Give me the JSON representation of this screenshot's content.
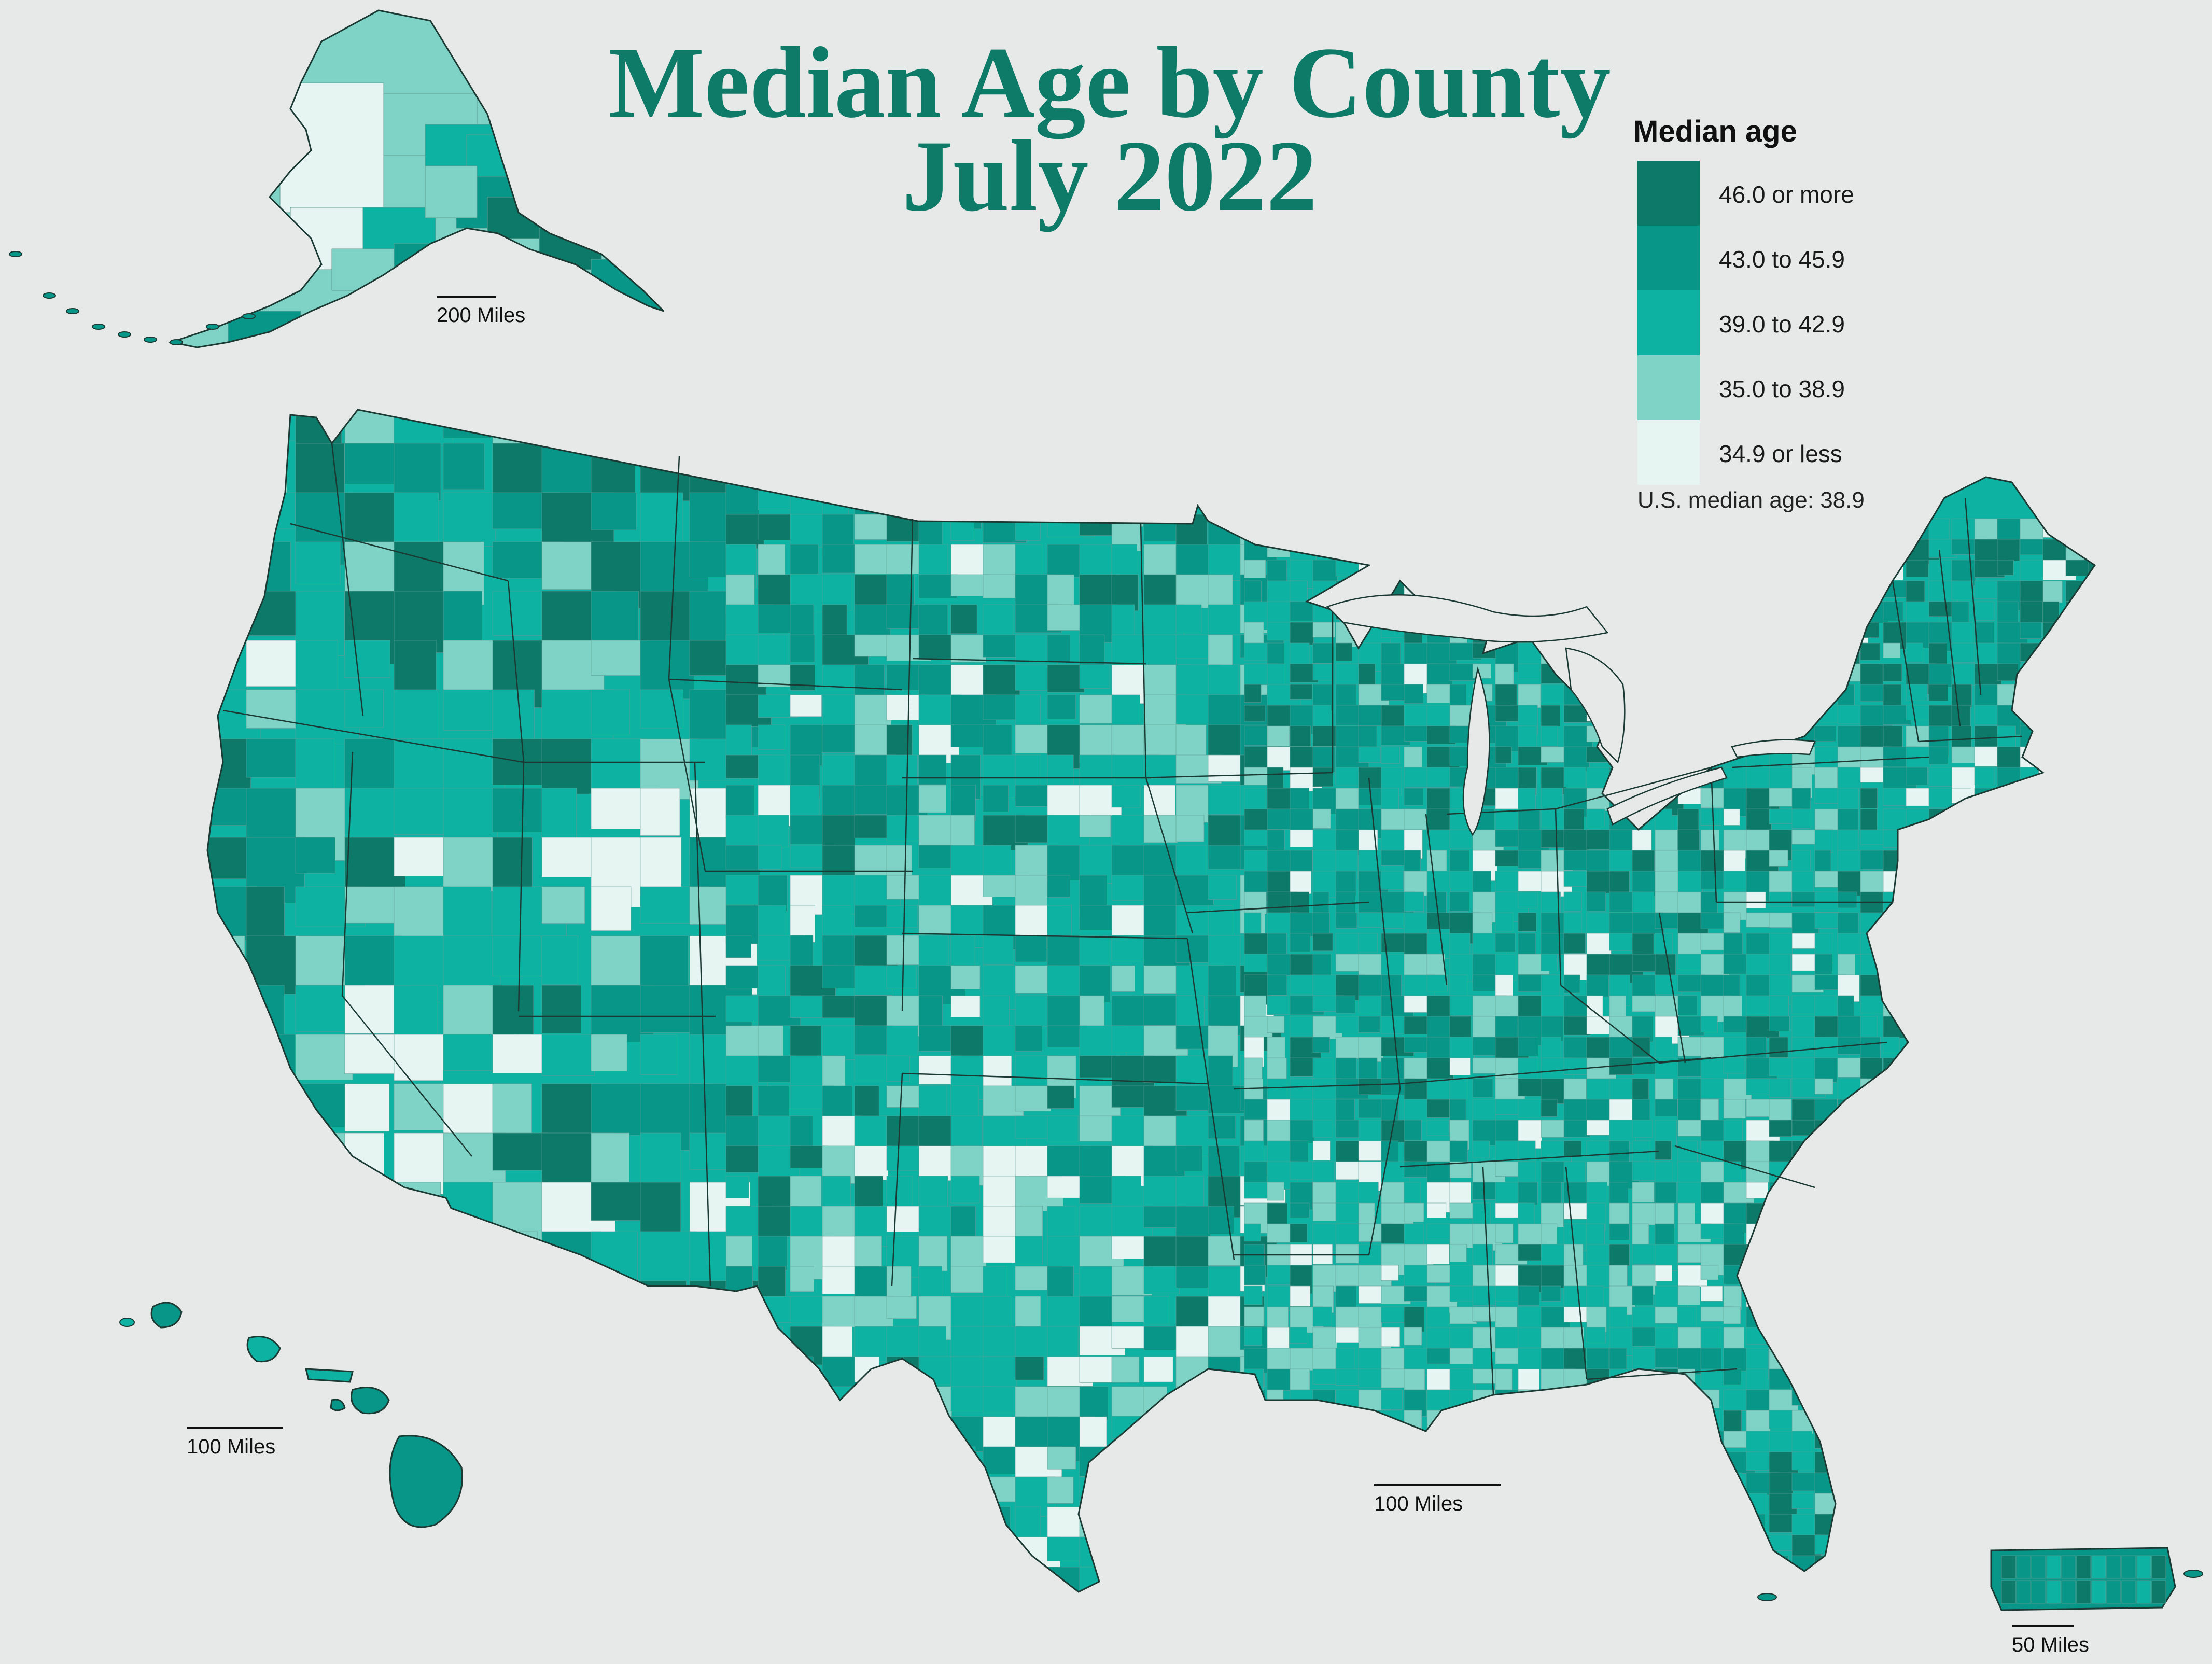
{
  "title": {
    "line1": "Median Age by County",
    "line2": "July 2022"
  },
  "legend": {
    "title": "Median age",
    "items": [
      {
        "label": "46.0 or more",
        "color": "#0d7a69"
      },
      {
        "label": "43.0 to 45.9",
        "color": "#079688"
      },
      {
        "label": "39.0 to 42.9",
        "color": "#0db2a2"
      },
      {
        "label": "35.0 to 38.9",
        "color": "#7fd3c6"
      },
      {
        "label": "34.9 or less",
        "color": "#e6f4f2"
      }
    ],
    "note": "U.S. median age: 38.9"
  },
  "scale_bars": {
    "alaska": "200 Miles",
    "hawaii": "100 Miles",
    "conus": "100 Miles",
    "puerto_rico": "50 Miles"
  },
  "colors": {
    "background": "#e6e9e7",
    "title": "#0e7a68",
    "border": "#1c3a34"
  }
}
